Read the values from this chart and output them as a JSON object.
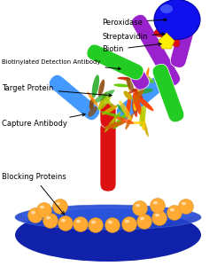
{
  "background_color": "#ffffff",
  "labels": {
    "peroxidase": "Peroxidase",
    "streptavidin": "Streptavidin",
    "biotin": "Biotin",
    "detection_ab": "Biotinylated Detection Antibody",
    "target_protein": "Target Protein",
    "capture_ab": "Capture Antibody",
    "blocking": "Blocking Proteins"
  },
  "colors": {
    "peroxidase": "#1111ee",
    "streptavidin": "#dd1111",
    "biotin": "#ffee00",
    "detection_ab_body": "#9922cc",
    "detection_ab_arms": "#22cc22",
    "capture_ab_body": "#dd1111",
    "capture_ab_arms": "#4499ff",
    "blocking_spheres": "#ffaa33",
    "plate_dark": "#1122aa",
    "plate_mid": "#2244cc",
    "plate_light": "#3366ee",
    "label_color": "#000000"
  }
}
